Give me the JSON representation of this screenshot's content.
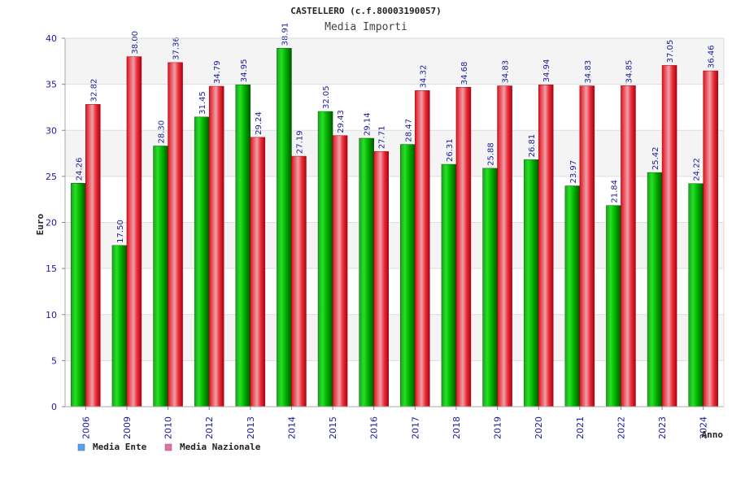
{
  "chart_data": {
    "type": "bar",
    "title": "CASTELLERO (c.f.80003190057)",
    "subtitle": "Media Importi",
    "xlabel": "Anno",
    "ylabel": "Euro",
    "ylim": [
      0,
      40
    ],
    "yticks": [
      0,
      5,
      10,
      15,
      20,
      25,
      30,
      35,
      40
    ],
    "grid": "horizontal",
    "legend_position": "bottom-left",
    "categories": [
      "2006",
      "2009",
      "2010",
      "2012",
      "2013",
      "2014",
      "2015",
      "2016",
      "2017",
      "2018",
      "2019",
      "2020",
      "2021",
      "2022",
      "2023",
      "2024"
    ],
    "series": [
      {
        "name": "Media Ente",
        "color": "#00b400",
        "legend_color": "#5aa0e8",
        "values": [
          24.26,
          17.5,
          28.3,
          31.45,
          34.95,
          38.91,
          32.05,
          29.14,
          28.47,
          26.31,
          25.88,
          26.81,
          23.97,
          21.84,
          25.42,
          24.22
        ],
        "labels": [
          "24.26",
          "17.50",
          "28.30",
          "31.45",
          "34.95",
          "38.91",
          "32.05",
          "29.14",
          "28.47",
          "26.31",
          "25.88",
          "26.81",
          "23.97",
          "21.84",
          "25.42",
          "24.22"
        ]
      },
      {
        "name": "Media Nazionale",
        "color": "#e8202a",
        "legend_color": "#d874a8",
        "values": [
          32.82,
          38.0,
          37.36,
          34.79,
          29.24,
          27.19,
          29.43,
          27.71,
          34.32,
          34.68,
          34.83,
          34.94,
          34.83,
          34.85,
          37.05,
          36.46
        ],
        "labels": [
          "32.82",
          "38.00",
          "37.36",
          "34.79",
          "29.24",
          "27.19",
          "29.43",
          "27.71",
          "34.32",
          "34.68",
          "34.83",
          "34.94",
          "34.83",
          "34.85",
          "37.05",
          "36.46"
        ]
      }
    ]
  }
}
